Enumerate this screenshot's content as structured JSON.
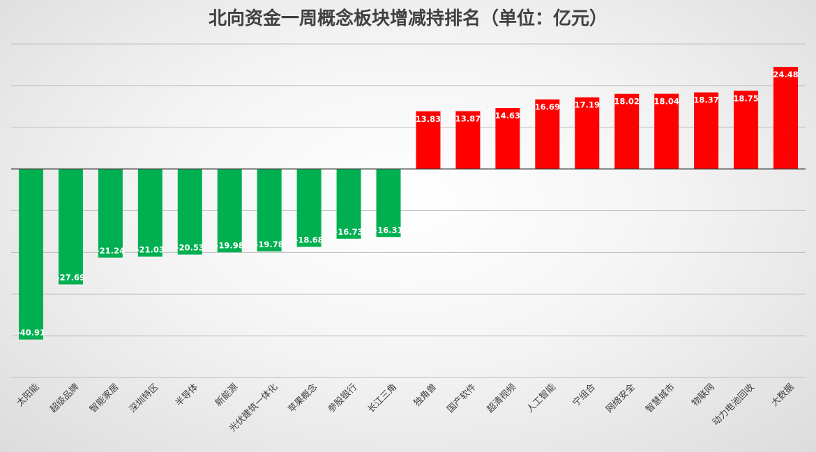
{
  "chart_data": {
    "type": "bar",
    "title": "北向资金一周概念板块增减持排名（单位：亿元）",
    "categories": [
      "太阳能",
      "超级品牌",
      "智能家居",
      "深圳特区",
      "半导体",
      "新能源",
      "光伏建筑一体化",
      "苹果概念",
      "参股银行",
      "长江三角",
      "独角兽",
      "国产软件",
      "超清视频",
      "人工智能",
      "宁组合",
      "网络安全",
      "智慧城市",
      "物联网",
      "动力电池回收",
      "大数据"
    ],
    "values": [
      -40.91,
      -27.69,
      -21.24,
      -21.03,
      -20.53,
      -19.98,
      -19.78,
      -18.68,
      -16.73,
      -16.31,
      13.83,
      13.87,
      14.63,
      16.69,
      17.19,
      18.02,
      18.04,
      18.37,
      18.75,
      24.48
    ],
    "value_labels": [
      "-40.91",
      "-27.69",
      "-21.24",
      "-21.03",
      "-20.53",
      "-19.98",
      "-19.78",
      "-18.68",
      "-16.73",
      "-16.31",
      "13.83",
      "13.87",
      "14.63",
      "16.69",
      "17.19",
      "18.02",
      "18.04",
      "18.37",
      "18.75",
      "24.48"
    ],
    "ylim": [
      -50,
      30
    ],
    "grid": true,
    "colors": {
      "positive": "#ff0000",
      "negative": "#00b050"
    }
  }
}
